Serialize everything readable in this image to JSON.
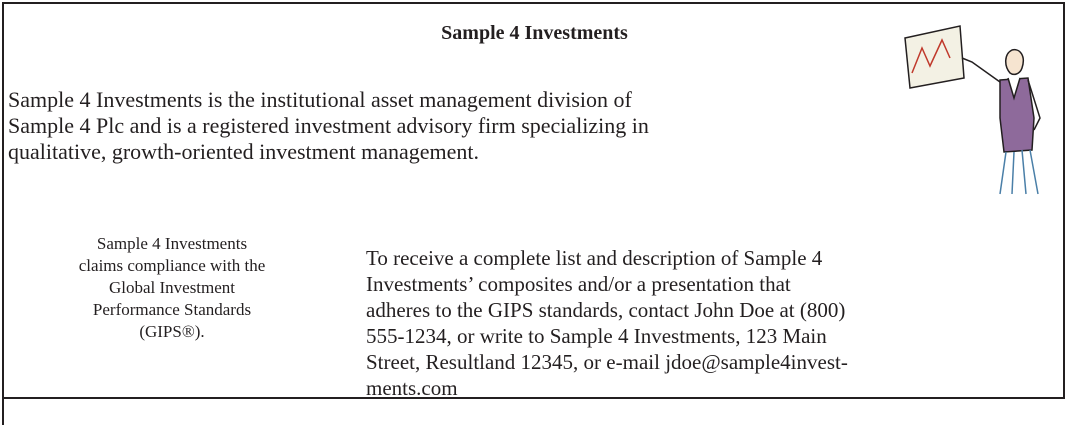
{
  "title": "Sample 4 Investments",
  "intro_lines": [
    "Sample 4 Investments is the institutional asset management division of",
    "Sample 4 Plc and is a registered investment advisory firm specializing in",
    "qualitative, growth-oriented investment management."
  ],
  "compliance_lines": [
    "Sample 4 Investments",
    "claims compliance with the",
    "Global Investment",
    "Performance Standards",
    "(GIPS®)."
  ],
  "contact_lines": [
    "To receive a complete list and description of Sample 4",
    "Investments’ composites and/or a presentation that",
    "adheres to the GIPS standards, contact John Doe at (800)",
    "555-1234, or write to Sample 4 Investments, 123 Main",
    "Street, Resultland 12345, or e-mail jdoe@sample4invest-",
    "ments.com"
  ]
}
